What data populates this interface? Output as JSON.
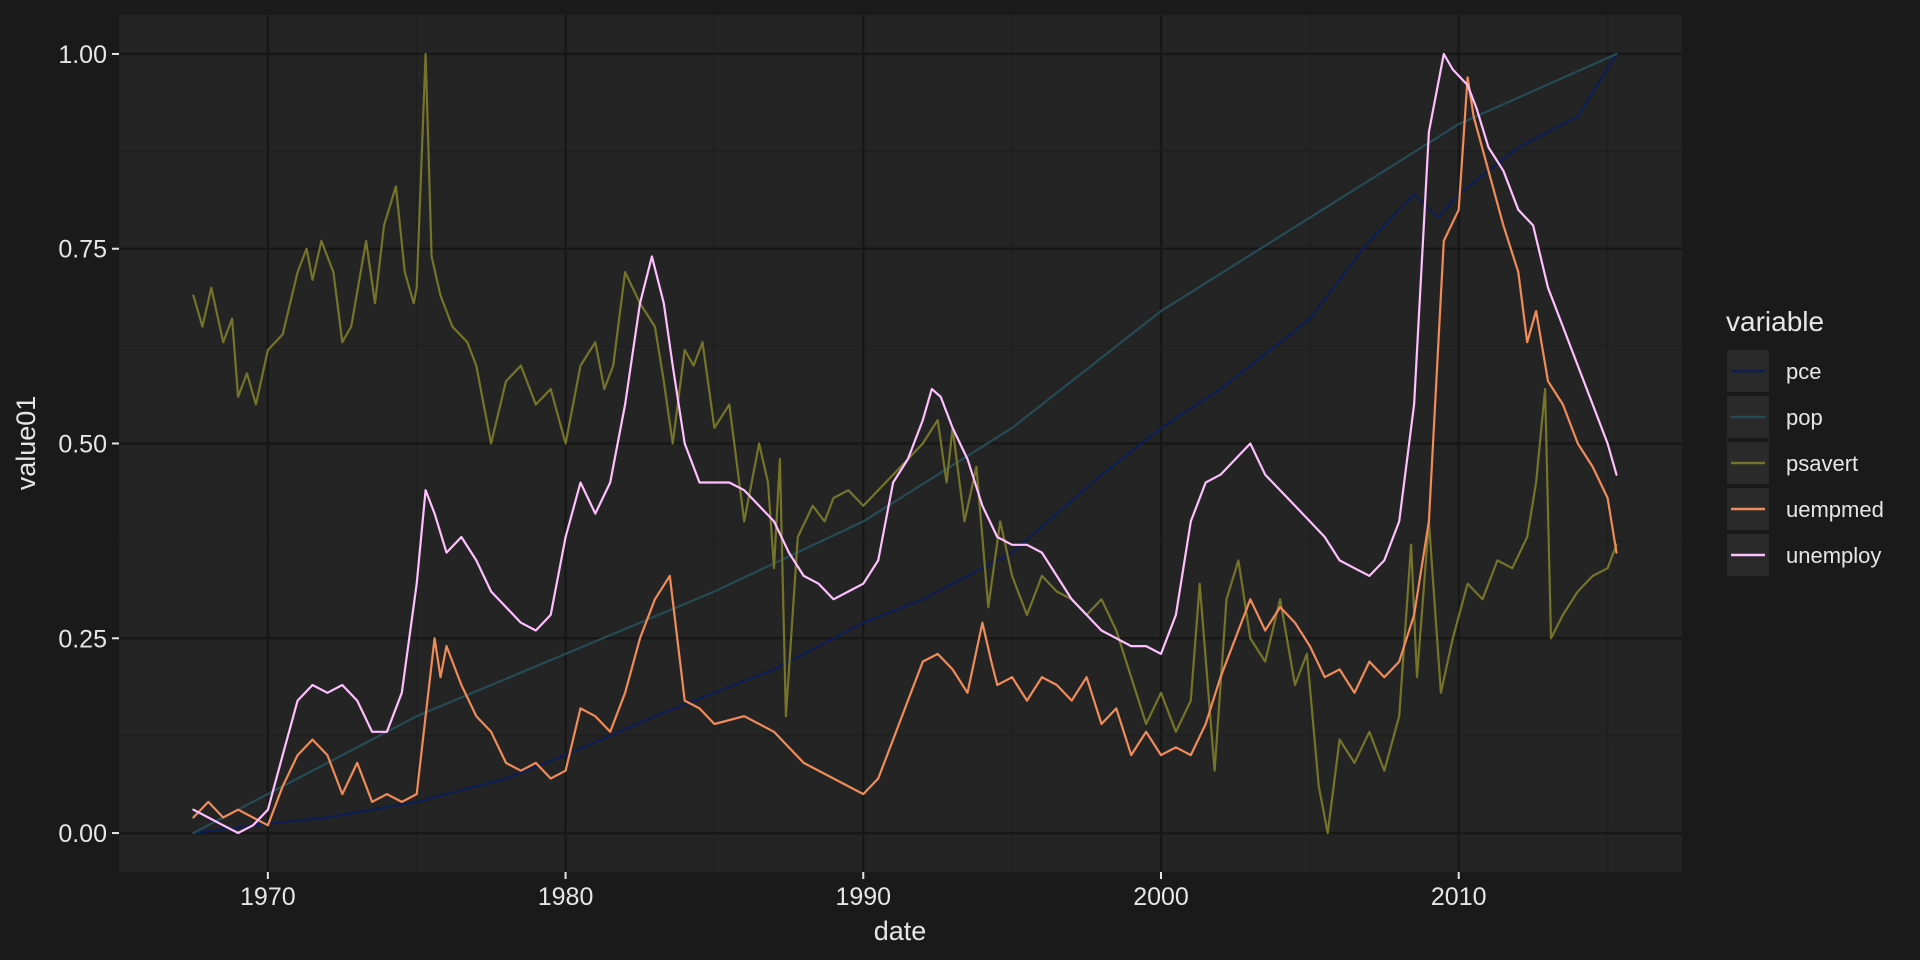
{
  "chart_data": {
    "type": "line",
    "title": "",
    "xlabel": "date",
    "ylabel": "value01",
    "xlim": [
      1965.0,
      2017.5
    ],
    "ylim": [
      -0.05,
      1.05
    ],
    "x_ticks": [
      1970,
      1980,
      1990,
      2000,
      2010
    ],
    "x_tick_labels": [
      "1970",
      "1980",
      "1990",
      "2000",
      "2010"
    ],
    "y_ticks": [
      0,
      0.25,
      0.5,
      0.75,
      1.0
    ],
    "y_tick_labels": [
      "0.00",
      "0.25",
      "0.50",
      "0.75",
      "1.00"
    ],
    "grid": true,
    "legend": {
      "title": "variable",
      "position": "right"
    },
    "series": [
      {
        "name": "pce",
        "color": "#0d1e55",
        "x": [
          1967.5,
          1970,
          1972,
          1975,
          1978,
          1980,
          1983,
          1985,
          1987,
          1990,
          1992,
          1995,
          1998,
          2000,
          2002,
          2005,
          2007,
          2008.5,
          2009.3,
          2010,
          2012,
          2014,
          2015.3
        ],
        "y": [
          0.0,
          0.012,
          0.02,
          0.04,
          0.07,
          0.1,
          0.15,
          0.18,
          0.21,
          0.27,
          0.3,
          0.36,
          0.46,
          0.52,
          0.57,
          0.66,
          0.76,
          0.82,
          0.79,
          0.82,
          0.88,
          0.92,
          1.0
        ]
      },
      {
        "name": "pop",
        "color": "#264b55",
        "x": [
          1967.5,
          1975,
          1980,
          1985,
          1990,
          1995,
          2000,
          2005,
          2010,
          2015.3
        ],
        "y": [
          0.0,
          0.15,
          0.23,
          0.31,
          0.4,
          0.52,
          0.67,
          0.79,
          0.91,
          1.0
        ]
      },
      {
        "name": "psavert",
        "color": "#74742b",
        "x": [
          1967.5,
          1967.8,
          1968.1,
          1968.5,
          1968.8,
          1969.0,
          1969.3,
          1969.6,
          1970.0,
          1970.5,
          1971.0,
          1971.3,
          1971.5,
          1971.8,
          1972.2,
          1972.5,
          1972.8,
          1973.3,
          1973.6,
          1973.9,
          1974.3,
          1974.6,
          1974.9,
          1975.0,
          1975.3,
          1975.5,
          1975.8,
          1976.2,
          1976.7,
          1977.0,
          1977.5,
          1978.0,
          1978.5,
          1979.0,
          1979.5,
          1980.0,
          1980.5,
          1981.0,
          1981.3,
          1981.6,
          1982.0,
          1982.5,
          1983.0,
          1983.3,
          1983.6,
          1984.0,
          1984.3,
          1984.6,
          1985.0,
          1985.5,
          1986.0,
          1986.5,
          1986.8,
          1987.0,
          1987.2,
          1987.4,
          1987.8,
          1988.3,
          1988.7,
          1989.0,
          1989.5,
          1990.0,
          1990.5,
          1991.0,
          1991.5,
          1992.0,
          1992.5,
          1992.8,
          1993.0,
          1993.4,
          1993.8,
          1994.2,
          1994.6,
          1995.0,
          1995.5,
          1996.0,
          1996.5,
          1997.0,
          1997.5,
          1998.0,
          1998.5,
          1999.0,
          1999.5,
          2000.0,
          2000.5,
          2001.0,
          2001.3,
          2001.8,
          2002.2,
          2002.6,
          2003.0,
          2003.5,
          2004.0,
          2004.5,
          2004.9,
          2005.3,
          2005.6,
          2006.0,
          2006.5,
          2007.0,
          2007.5,
          2008.0,
          2008.4,
          2008.6,
          2009.0,
          2009.4,
          2009.8,
          2010.3,
          2010.8,
          2011.3,
          2011.8,
          2012.3,
          2012.6,
          2012.9,
          2013.1,
          2013.5,
          2014.0,
          2014.5,
          2015.0,
          2015.3
        ],
        "y": [
          0.69,
          0.65,
          0.7,
          0.63,
          0.66,
          0.56,
          0.59,
          0.55,
          0.62,
          0.64,
          0.72,
          0.75,
          0.71,
          0.76,
          0.72,
          0.63,
          0.65,
          0.76,
          0.68,
          0.78,
          0.83,
          0.72,
          0.68,
          0.7,
          1.0,
          0.74,
          0.69,
          0.65,
          0.63,
          0.6,
          0.5,
          0.58,
          0.6,
          0.55,
          0.57,
          0.5,
          0.6,
          0.63,
          0.57,
          0.6,
          0.72,
          0.68,
          0.65,
          0.58,
          0.5,
          0.62,
          0.6,
          0.63,
          0.52,
          0.55,
          0.4,
          0.5,
          0.45,
          0.34,
          0.48,
          0.15,
          0.38,
          0.42,
          0.4,
          0.43,
          0.44,
          0.42,
          0.44,
          0.46,
          0.48,
          0.5,
          0.53,
          0.45,
          0.52,
          0.4,
          0.47,
          0.29,
          0.4,
          0.33,
          0.28,
          0.33,
          0.31,
          0.3,
          0.28,
          0.3,
          0.26,
          0.2,
          0.14,
          0.18,
          0.13,
          0.17,
          0.32,
          0.08,
          0.3,
          0.35,
          0.25,
          0.22,
          0.3,
          0.19,
          0.23,
          0.06,
          0.0,
          0.12,
          0.09,
          0.13,
          0.08,
          0.15,
          0.37,
          0.2,
          0.4,
          0.18,
          0.25,
          0.32,
          0.3,
          0.35,
          0.34,
          0.38,
          0.45,
          0.57,
          0.25,
          0.28,
          0.31,
          0.33,
          0.34,
          0.37
        ]
      },
      {
        "name": "uempmed",
        "color": "#f08c5a",
        "x": [
          1967.5,
          1968.0,
          1968.5,
          1969.0,
          1969.5,
          1970.0,
          1970.5,
          1971.0,
          1971.5,
          1972.0,
          1972.5,
          1973.0,
          1973.5,
          1974.0,
          1974.5,
          1975.0,
          1975.3,
          1975.6,
          1975.8,
          1976.0,
          1976.5,
          1977.0,
          1977.5,
          1978.0,
          1978.5,
          1979.0,
          1979.5,
          1980.0,
          1980.5,
          1981.0,
          1981.5,
          1982.0,
          1982.5,
          1983.0,
          1983.5,
          1984.0,
          1984.5,
          1985.0,
          1986.0,
          1987.0,
          1988.0,
          1989.0,
          1990.0,
          1990.5,
          1991.0,
          1991.5,
          1992.0,
          1992.5,
          1993.0,
          1993.5,
          1994.0,
          1994.3,
          1994.5,
          1995.0,
          1995.5,
          1996.0,
          1996.5,
          1997.0,
          1997.5,
          1998.0,
          1998.5,
          1999.0,
          1999.5,
          2000.0,
          2000.5,
          2001.0,
          2001.5,
          2002.0,
          2002.5,
          2003.0,
          2003.5,
          2004.0,
          2004.5,
          2005.0,
          2005.5,
          2006.0,
          2006.5,
          2007.0,
          2007.5,
          2008.0,
          2008.5,
          2009.0,
          2009.5,
          2010.0,
          2010.3,
          2010.5,
          2011.0,
          2011.5,
          2012.0,
          2012.3,
          2012.6,
          2013.0,
          2013.5,
          2014.0,
          2014.5,
          2015.0,
          2015.3
        ],
        "y": [
          0.02,
          0.04,
          0.02,
          0.03,
          0.02,
          0.01,
          0.06,
          0.1,
          0.12,
          0.1,
          0.05,
          0.09,
          0.04,
          0.05,
          0.04,
          0.05,
          0.15,
          0.25,
          0.2,
          0.24,
          0.19,
          0.15,
          0.13,
          0.09,
          0.08,
          0.09,
          0.07,
          0.08,
          0.16,
          0.15,
          0.13,
          0.18,
          0.25,
          0.3,
          0.33,
          0.17,
          0.16,
          0.14,
          0.15,
          0.13,
          0.09,
          0.07,
          0.05,
          0.07,
          0.12,
          0.17,
          0.22,
          0.23,
          0.21,
          0.18,
          0.27,
          0.22,
          0.19,
          0.2,
          0.17,
          0.2,
          0.19,
          0.17,
          0.2,
          0.14,
          0.16,
          0.1,
          0.13,
          0.1,
          0.11,
          0.1,
          0.14,
          0.2,
          0.25,
          0.3,
          0.26,
          0.29,
          0.27,
          0.24,
          0.2,
          0.21,
          0.18,
          0.22,
          0.2,
          0.22,
          0.28,
          0.4,
          0.76,
          0.8,
          0.97,
          0.92,
          0.85,
          0.78,
          0.72,
          0.63,
          0.67,
          0.58,
          0.55,
          0.5,
          0.47,
          0.43,
          0.36
        ]
      },
      {
        "name": "unemploy",
        "color": "#ffc0ff",
        "x": [
          1967.5,
          1968.0,
          1968.5,
          1969.0,
          1969.5,
          1970.0,
          1970.5,
          1971.0,
          1971.5,
          1972.0,
          1972.5,
          1973.0,
          1973.5,
          1974.0,
          1974.5,
          1975.0,
          1975.3,
          1975.6,
          1976.0,
          1976.5,
          1977.0,
          1977.5,
          1978.0,
          1978.5,
          1979.0,
          1979.5,
          1980.0,
          1980.5,
          1981.0,
          1981.5,
          1982.0,
          1982.5,
          1982.9,
          1983.3,
          1983.6,
          1984.0,
          1984.5,
          1985.0,
          1985.5,
          1986.0,
          1986.5,
          1987.0,
          1987.5,
          1988.0,
          1988.5,
          1989.0,
          1989.5,
          1990.0,
          1990.5,
          1991.0,
          1991.5,
          1992.0,
          1992.3,
          1992.6,
          1993.0,
          1993.5,
          1994.0,
          1994.5,
          1995.0,
          1995.5,
          1996.0,
          1996.5,
          1997.0,
          1997.5,
          1998.0,
          1998.5,
          1999.0,
          1999.5,
          2000.0,
          2000.5,
          2001.0,
          2001.5,
          2002.0,
          2002.5,
          2003.0,
          2003.5,
          2004.0,
          2004.5,
          2005.0,
          2005.5,
          2006.0,
          2006.5,
          2007.0,
          2007.5,
          2008.0,
          2008.5,
          2009.0,
          2009.5,
          2009.8,
          2010.3,
          2010.6,
          2011.0,
          2011.5,
          2012.0,
          2012.5,
          2013.0,
          2013.5,
          2014.0,
          2014.5,
          2015.0,
          2015.3
        ],
        "y": [
          0.03,
          0.02,
          0.01,
          0.0,
          0.01,
          0.03,
          0.1,
          0.17,
          0.19,
          0.18,
          0.19,
          0.17,
          0.13,
          0.13,
          0.18,
          0.32,
          0.44,
          0.41,
          0.36,
          0.38,
          0.35,
          0.31,
          0.29,
          0.27,
          0.26,
          0.28,
          0.38,
          0.45,
          0.41,
          0.45,
          0.55,
          0.68,
          0.74,
          0.68,
          0.6,
          0.5,
          0.45,
          0.45,
          0.45,
          0.44,
          0.42,
          0.4,
          0.36,
          0.33,
          0.32,
          0.3,
          0.31,
          0.32,
          0.35,
          0.45,
          0.48,
          0.53,
          0.57,
          0.56,
          0.52,
          0.48,
          0.42,
          0.38,
          0.37,
          0.37,
          0.36,
          0.33,
          0.3,
          0.28,
          0.26,
          0.25,
          0.24,
          0.24,
          0.23,
          0.28,
          0.4,
          0.45,
          0.46,
          0.48,
          0.5,
          0.46,
          0.44,
          0.42,
          0.4,
          0.38,
          0.35,
          0.34,
          0.33,
          0.35,
          0.4,
          0.55,
          0.9,
          1.0,
          0.98,
          0.96,
          0.93,
          0.88,
          0.85,
          0.8,
          0.78,
          0.7,
          0.65,
          0.6,
          0.55,
          0.5,
          0.46
        ]
      }
    ]
  }
}
